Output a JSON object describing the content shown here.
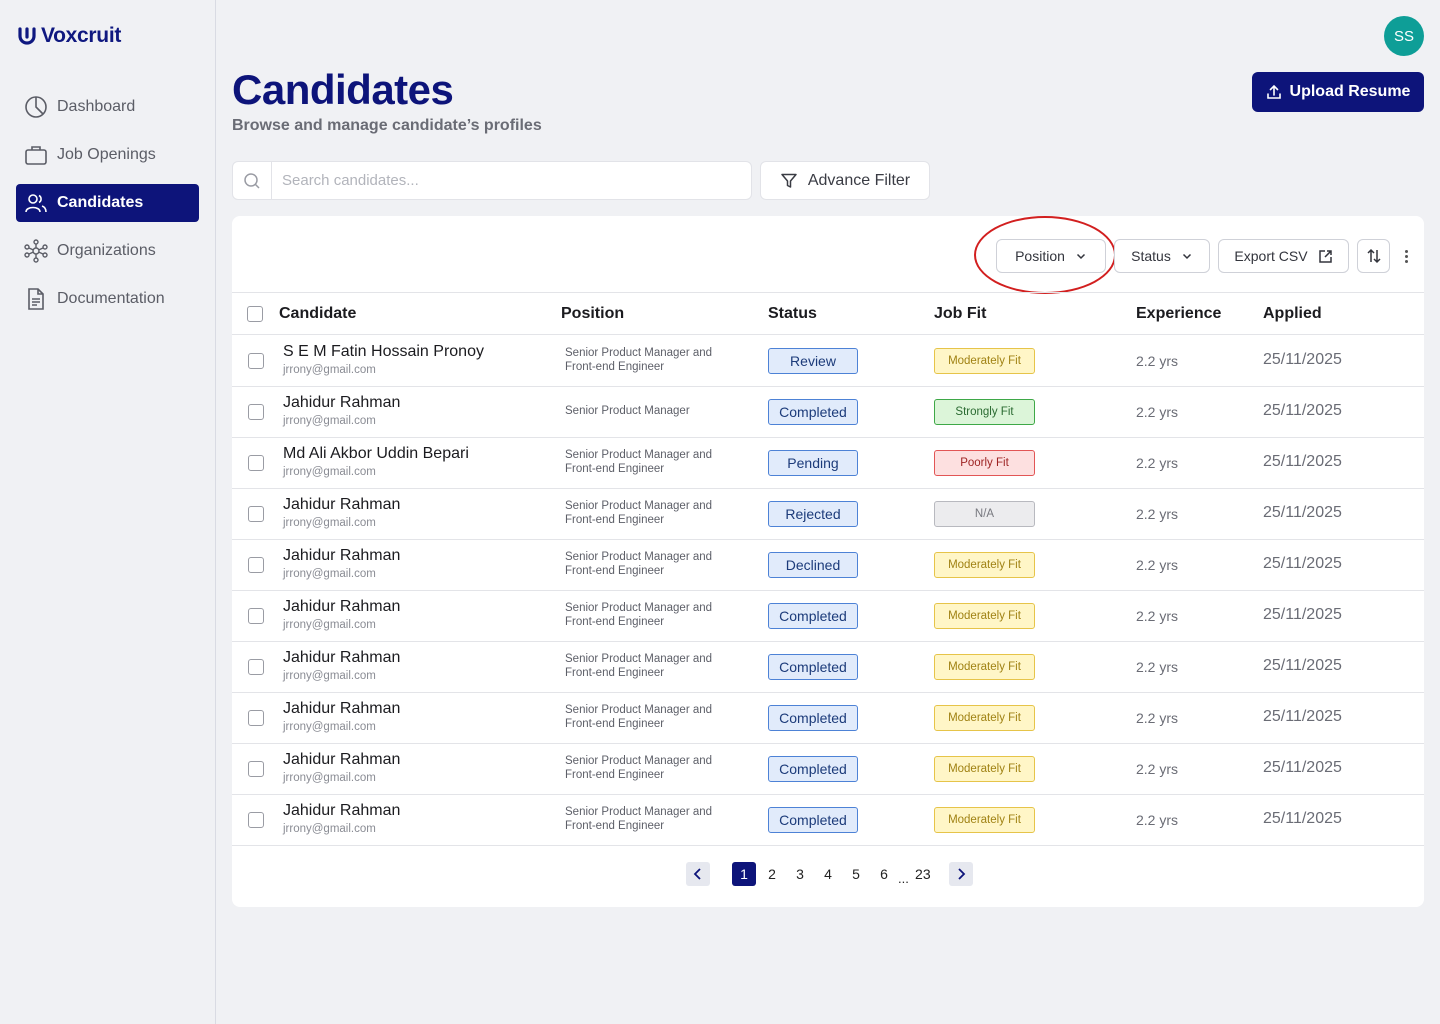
{
  "app": {
    "name": "Voxcruit"
  },
  "user": {
    "initials": "SS"
  },
  "sidebar": {
    "items": [
      {
        "label": "Dashboard",
        "icon": "pie-chart-icon",
        "active": false
      },
      {
        "label": "Job Openings",
        "icon": "briefcase-icon",
        "active": false
      },
      {
        "label": "Candidates",
        "icon": "users-icon",
        "active": true
      },
      {
        "label": "Organizations",
        "icon": "network-icon",
        "active": false
      },
      {
        "label": "Documentation",
        "icon": "document-icon",
        "active": false
      }
    ]
  },
  "header": {
    "title": "Candidates",
    "subtitle": "Browse and manage candidate’s profiles",
    "upload_label": "Upload Resume"
  },
  "search": {
    "placeholder": "Search candidates...",
    "value": ""
  },
  "filter": {
    "advance_label": "Advance Filter"
  },
  "toolbar": {
    "position_label": "Position",
    "status_label": "Status",
    "export_label": "Export CSV"
  },
  "table": {
    "columns": [
      "Candidate",
      "Position",
      "Status",
      "Job Fit",
      "Experience",
      "Applied"
    ],
    "rows": [
      {
        "name": "S E M Fatin Hossain Pronoy",
        "email": "jrrony@gmail.com",
        "position": "Senior Product Manager and Front-end Engineer",
        "status": "Review",
        "fit": "Moderately Fit",
        "fit_type": "moderate",
        "experience": "2.2 yrs",
        "applied": "25/11/2025"
      },
      {
        "name": "Jahidur Rahman",
        "email": "jrrony@gmail.com",
        "position": "Senior Product Manager",
        "status": "Completed",
        "fit": "Strongly Fit",
        "fit_type": "strong",
        "experience": "2.2 yrs",
        "applied": "25/11/2025"
      },
      {
        "name": "Md Ali Akbor Uddin Bepari",
        "email": "jrrony@gmail.com",
        "position": "Senior Product Manager and Front-end Engineer",
        "status": "Pending",
        "fit": "Poorly Fit",
        "fit_type": "poor",
        "experience": "2.2 yrs",
        "applied": "25/11/2025"
      },
      {
        "name": "Jahidur Rahman",
        "email": "jrrony@gmail.com",
        "position": "Senior Product Manager and Front-end Engineer",
        "status": "Rejected",
        "fit": "N/A",
        "fit_type": "na",
        "experience": "2.2 yrs",
        "applied": "25/11/2025"
      },
      {
        "name": "Jahidur Rahman",
        "email": "jrrony@gmail.com",
        "position": "Senior Product Manager and Front-end Engineer",
        "status": "Declined",
        "fit": "Moderately Fit",
        "fit_type": "moderate",
        "experience": "2.2 yrs",
        "applied": "25/11/2025"
      },
      {
        "name": "Jahidur Rahman",
        "email": "jrrony@gmail.com",
        "position": "Senior Product Manager and Front-end Engineer",
        "status": "Completed",
        "fit": "Moderately Fit",
        "fit_type": "moderate",
        "experience": "2.2 yrs",
        "applied": "25/11/2025"
      },
      {
        "name": "Jahidur Rahman",
        "email": "jrrony@gmail.com",
        "position": "Senior Product Manager and Front-end Engineer",
        "status": "Completed",
        "fit": "Moderately Fit",
        "fit_type": "moderate",
        "experience": "2.2 yrs",
        "applied": "25/11/2025"
      },
      {
        "name": "Jahidur Rahman",
        "email": "jrrony@gmail.com",
        "position": "Senior Product Manager and Front-end Engineer",
        "status": "Completed",
        "fit": "Moderately Fit",
        "fit_type": "moderate",
        "experience": "2.2 yrs",
        "applied": "25/11/2025"
      },
      {
        "name": "Jahidur Rahman",
        "email": "jrrony@gmail.com",
        "position": "Senior Product Manager and Front-end Engineer",
        "status": "Completed",
        "fit": "Moderately Fit",
        "fit_type": "moderate",
        "experience": "2.2 yrs",
        "applied": "25/11/2025"
      },
      {
        "name": "Jahidur Rahman",
        "email": "jrrony@gmail.com",
        "position": "Senior Product Manager and Front-end Engineer",
        "status": "Completed",
        "fit": "Moderately Fit",
        "fit_type": "moderate",
        "experience": "2.2 yrs",
        "applied": "25/11/2025"
      }
    ]
  },
  "pagination": {
    "pages": [
      "1",
      "2",
      "3",
      "4",
      "5",
      "6"
    ],
    "ellipsis": "...",
    "last": "23",
    "current": "1"
  },
  "colors": {
    "brand": "#0d147a",
    "avatar": "#0e9e97",
    "highlight": "#d21f1f"
  }
}
